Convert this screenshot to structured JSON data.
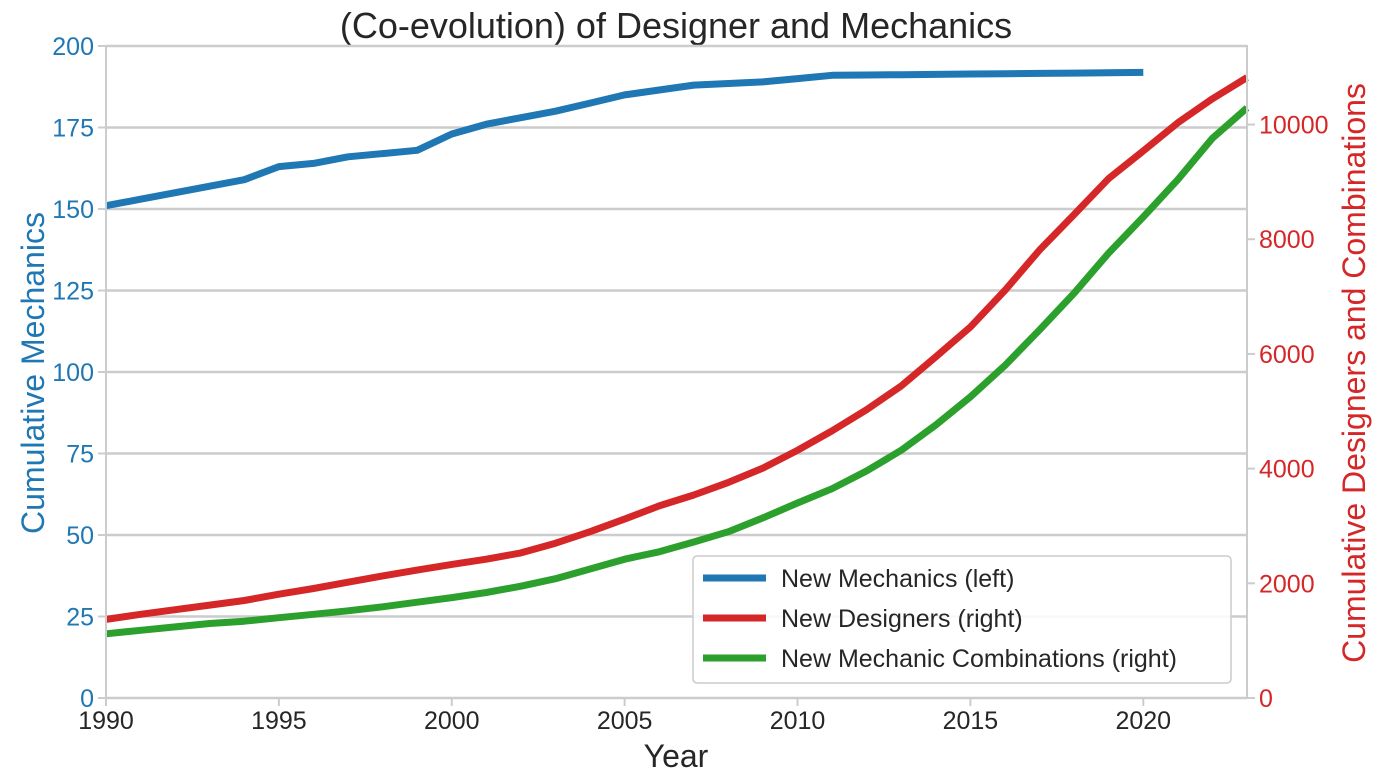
{
  "chart_data": {
    "type": "line",
    "title": "(Co-evolution) of Designer and Mechanics",
    "xlabel": "Year",
    "ylabel_left": "Cumulative Mechanics",
    "ylabel_right": "Cumulative Designers and Combinations",
    "xlim": [
      1990,
      2023
    ],
    "ylim_left": [
      0,
      200
    ],
    "ylim_right": [
      0,
      11370
    ],
    "x_ticks": [
      1990,
      1995,
      2000,
      2005,
      2010,
      2015,
      2020
    ],
    "y_ticks_left": [
      0,
      25,
      50,
      75,
      100,
      125,
      150,
      175,
      200
    ],
    "y_ticks_right": [
      0,
      2000,
      4000,
      6000,
      8000,
      10000
    ],
    "grid": "horizontal, left axis",
    "legend_position": "lower-right",
    "colors": {
      "left_axis": "#1f77b4",
      "right_axis": "#d62728",
      "grid": "#cccccc",
      "text": "#262626"
    },
    "series": [
      {
        "name": "New Mechanics (left)",
        "axis": "left",
        "color": "#1f77b4",
        "x": [
          1990,
          1991,
          1992,
          1993,
          1994,
          1995,
          1996,
          1997,
          1998,
          1999,
          2000,
          2001,
          2002,
          2003,
          2004,
          2005,
          2006,
          2007,
          2008,
          2009,
          2010,
          2011,
          2012,
          2013,
          2014,
          2015,
          2016,
          2017,
          2018,
          2019,
          2020
        ],
        "y": [
          151,
          153,
          155,
          157,
          159,
          163,
          164,
          166,
          167,
          168,
          173,
          176,
          178,
          180,
          182.5,
          185,
          186.5,
          188,
          188.5,
          189,
          190,
          191,
          191.1,
          191.2,
          191.3,
          191.4,
          191.5,
          191.6,
          191.7,
          191.8,
          191.9
        ]
      },
      {
        "name": "New Designers (right)",
        "axis": "right",
        "color": "#d62728",
        "x": [
          1990,
          1991,
          1992,
          1993,
          1994,
          1995,
          1996,
          1997,
          1998,
          1999,
          2000,
          2001,
          2002,
          2003,
          2004,
          2005,
          2006,
          2007,
          2008,
          2009,
          2010,
          2011,
          2012,
          2013,
          2014,
          2015,
          2016,
          2017,
          2018,
          2019,
          2020,
          2021,
          2022,
          2023
        ],
        "y": [
          1370,
          1460,
          1540,
          1620,
          1700,
          1810,
          1910,
          2020,
          2130,
          2230,
          2330,
          2420,
          2530,
          2700,
          2900,
          3120,
          3350,
          3540,
          3760,
          4010,
          4320,
          4660,
          5030,
          5440,
          5950,
          6470,
          7110,
          7810,
          8430,
          9060,
          9540,
          10030,
          10450,
          10820
        ]
      },
      {
        "name": "New Mechanic Combinations (right)",
        "axis": "right",
        "color": "#2ca02c",
        "x": [
          1990,
          1991,
          1992,
          1993,
          1994,
          1995,
          1996,
          1997,
          1998,
          1999,
          2000,
          2001,
          2002,
          2003,
          2004,
          2005,
          2006,
          2007,
          2008,
          2009,
          2010,
          2011,
          2012,
          2013,
          2014,
          2015,
          2016,
          2017,
          2018,
          2019,
          2020,
          2021,
          2022,
          2023
        ],
        "y": [
          1120,
          1180,
          1240,
          1300,
          1340,
          1400,
          1460,
          1520,
          1590,
          1670,
          1750,
          1840,
          1950,
          2080,
          2250,
          2420,
          2550,
          2720,
          2900,
          3140,
          3400,
          3650,
          3960,
          4320,
          4760,
          5250,
          5800,
          6420,
          7060,
          7760,
          8390,
          9040,
          9760,
          10290
        ]
      }
    ]
  }
}
